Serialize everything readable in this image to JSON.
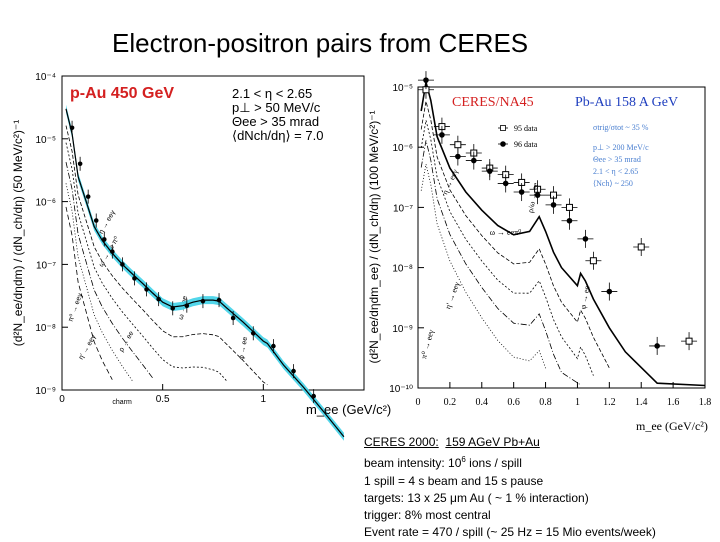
{
  "slide": {
    "title": "Electron-positron pairs from CERES"
  },
  "notes": {
    "line1_prefix": "CERES 2000:",
    "line1_value": "159 AGeV Pb+Au",
    "line2_prefix": "beam intensity:  10",
    "line2_exp": "6",
    "line2_suffix": " ions / spill",
    "line3": "1 spill = 4 s beam and 15 s pause",
    "line4": "targets:  13 x 25 μm  Au  ( ~ 1 % interaction)",
    "line5": "trigger: 8% most central",
    "line6": "Event rate = 470 / spill (~ 25 Hz = 15 Mio events/week)"
  },
  "colors": {
    "band": "#3fd1e8",
    "title_red": "#d42020",
    "pbau_blue": "#1f3fbf",
    "cuts_blue": "#4a7fd0"
  },
  "chart_data": [
    {
      "type": "line",
      "title": "p-Au 450 GeV",
      "xlabel": "m_ee (GeV/c²)",
      "ylabel": "(d²N_ee/dηdm) / (dN_ch/dη) (50 MeV/c²)⁻¹",
      "xlim": [
        0,
        1.5
      ],
      "ylim_log10": [
        -9,
        -4
      ],
      "x_scale": "linear",
      "y_scale": "log",
      "x_ticks": [
        "0",
        "0.5",
        "1"
      ],
      "y_ticks": [
        "10⁻⁹",
        "10⁻⁸",
        "10⁻⁷",
        "10⁻⁶",
        "10⁻⁵",
        "10⁻⁴"
      ],
      "cuts": [
        "2.1 < η < 2.65",
        "p⊥ > 50 MeV/c",
        "Θee > 35 mrad",
        "⟨dNch/dη⟩ = 7.0"
      ],
      "annotations": [
        "η → eeγ",
        "ω → ee π⁰",
        "ω → ee",
        "φ → ee",
        "η' → eeγ",
        "ρ → ee",
        "π⁰ → eeγ",
        "charm"
      ],
      "series": [
        {
          "name": "",
          "x": [
            0.02,
            0.05,
            0.08,
            0.12,
            0.16,
            0.2,
            0.25,
            0.3,
            0.35,
            0.4,
            0.45,
            0.5,
            0.55,
            0.6,
            0.65,
            0.7,
            0.75,
            0.78,
            0.82,
            0.9,
            1.0,
            1.02,
            1.1,
            1.2,
            1.3,
            1.4
          ],
          "y": [
            3e-05,
            1.2e-05,
            2.5e-06,
            1e-06,
            4e-07,
            2.4e-07,
            1.5e-07,
            1e-07,
            7e-08,
            5e-08,
            3.5e-08,
            2.5e-08,
            2.1e-08,
            2.2e-08,
            2.5e-08,
            2.7e-08,
            2.7e-08,
            2.6e-08,
            2e-08,
            1.2e-08,
            6e-09,
            5.5e-09,
            2.5e-09,
            1.1e-09,
            4.5e-10,
            1.8e-10
          ]
        }
      ],
      "data_points": {
        "x": [
          0.05,
          0.09,
          0.13,
          0.17,
          0.21,
          0.25,
          0.3,
          0.36,
          0.42,
          0.48,
          0.55,
          0.62,
          0.7,
          0.78,
          0.85,
          0.95,
          1.05,
          1.15,
          1.25
        ],
        "y": [
          1.5e-05,
          4e-06,
          1.2e-06,
          5e-07,
          2.5e-07,
          1.6e-07,
          1e-07,
          6e-08,
          4e-08,
          2.8e-08,
          2e-08,
          2.2e-08,
          2.6e-08,
          2.7e-08,
          1.4e-08,
          8e-09,
          5e-09,
          2e-09,
          8e-10
        ]
      }
    },
    {
      "type": "line",
      "title": "CERES/NA45",
      "subtitle": "Pb-Au 158 A GeV",
      "xlabel": "m_ee (GeV/c²)",
      "ylabel": "(d²N_ee/dηdm_ee) / (dN_ch/dη) (100 MeV/c²)⁻¹",
      "xlim": [
        0,
        1.8
      ],
      "ylim_log10": [
        -10,
        -5
      ],
      "x_scale": "linear",
      "y_scale": "log",
      "x_ticks": [
        "0",
        "0.2",
        "0.4",
        "0.6",
        "0.8",
        "1",
        "1.2",
        "1.4",
        "1.6",
        "1.8"
      ],
      "y_ticks": [
        "10⁻¹⁰",
        "10⁻⁹",
        "10⁻⁸",
        "10⁻⁷",
        "10⁻⁶",
        "10⁻⁵"
      ],
      "legend": [
        "95 data",
        "96 data"
      ],
      "cuts": [
        "σtrig/σtot ~ 35 %",
        "p⊥ > 200 MeV/c",
        "Θee > 35 mrad",
        "2.1 < η < 2.65",
        "⟨Nch⟩ ~ 250"
      ],
      "annotations": [
        "η → eeγ",
        "ω → eeπ⁰",
        "ρ/ω → ee",
        "η' → eeγ",
        "φ → ee",
        "π⁰ → eeγ"
      ],
      "series": [
        {
          "name": "95 data",
          "x": [
            0.05,
            0.15,
            0.25,
            0.35,
            0.45,
            0.55,
            0.65,
            0.75,
            0.85,
            0.95,
            1.1,
            1.4,
            1.7
          ],
          "y": [
            9e-06,
            2.2e-06,
            1.1e-06,
            8e-07,
            4.5e-07,
            3.5e-07,
            2.6e-07,
            2e-07,
            1.6e-07,
            1e-07,
            1.3e-08,
            2.2e-08,
            6e-10
          ]
        },
        {
          "name": "96 data",
          "x": [
            0.05,
            0.15,
            0.25,
            0.35,
            0.45,
            0.55,
            0.65,
            0.75,
            0.85,
            0.95,
            1.05,
            1.2,
            1.5
          ],
          "y": [
            1.3e-05,
            1.6e-06,
            7e-07,
            6e-07,
            4e-07,
            2.5e-07,
            1.8e-07,
            1.6e-07,
            1.1e-07,
            6e-08,
            3e-08,
            4e-09,
            5e-10
          ]
        }
      ]
    }
  ]
}
